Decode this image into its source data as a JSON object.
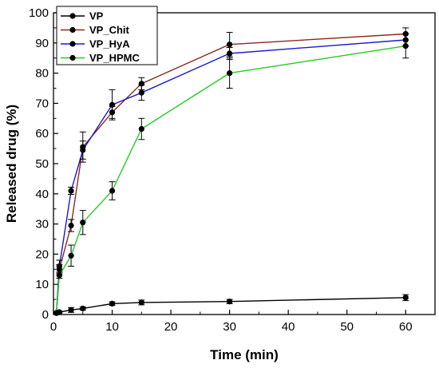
{
  "chart_data": {
    "type": "line",
    "xlabel": "Time (min)",
    "ylabel": "Released drug (%)",
    "xlim": [
      0,
      65
    ],
    "ylim": [
      0,
      100
    ],
    "xticks": [
      0,
      10,
      20,
      30,
      40,
      50,
      60
    ],
    "yticks": [
      0,
      10,
      20,
      30,
      40,
      50,
      60,
      70,
      80,
      90,
      100
    ],
    "legend_position": "top-left",
    "grid": false,
    "x": [
      0.5,
      1,
      3,
      5,
      10,
      15,
      30,
      60
    ],
    "series": [
      {
        "name": "VP",
        "color": "#000000",
        "x": [
          1,
          3,
          5,
          10,
          15,
          30,
          60
        ],
        "values": [
          0.8,
          1.5,
          2.0,
          3.6,
          4.0,
          4.3,
          5.6
        ],
        "errors": [
          0.3,
          0.8,
          0.5,
          0.6,
          0.8,
          0.7,
          1.0
        ]
      },
      {
        "name": "VP_Chit",
        "color": "#8b2a1a",
        "x": [
          0.5,
          1,
          3,
          5,
          10,
          15,
          30,
          60
        ],
        "values": [
          0.5,
          15.0,
          29.5,
          55.5,
          67.0,
          76.5,
          89.5,
          93.0
        ],
        "errors": [
          0.3,
          1.5,
          2.0,
          5.0,
          2.0,
          2.0,
          4.0,
          2.0
        ]
      },
      {
        "name": "VP_HyA",
        "color": "#1a1ad4",
        "x": [
          0.5,
          1,
          3,
          5,
          10,
          15,
          30,
          60
        ],
        "values": [
          0.5,
          16.0,
          41.0,
          54.5,
          69.5,
          73.5,
          86.5,
          91.0
        ],
        "errors": [
          0.3,
          2.0,
          1.2,
          3.0,
          5.0,
          2.5,
          2.0,
          2.0
        ]
      },
      {
        "name": "VP_HPMC",
        "color": "#22cc22",
        "x": [
          0.5,
          1,
          3,
          5,
          10,
          15,
          30,
          60
        ],
        "values": [
          0.5,
          13.0,
          19.5,
          30.5,
          41.0,
          61.5,
          80.0,
          89.0
        ],
        "errors": [
          0.3,
          1.0,
          3.5,
          4.0,
          3.0,
          3.5,
          5.0,
          4.0
        ]
      }
    ]
  }
}
